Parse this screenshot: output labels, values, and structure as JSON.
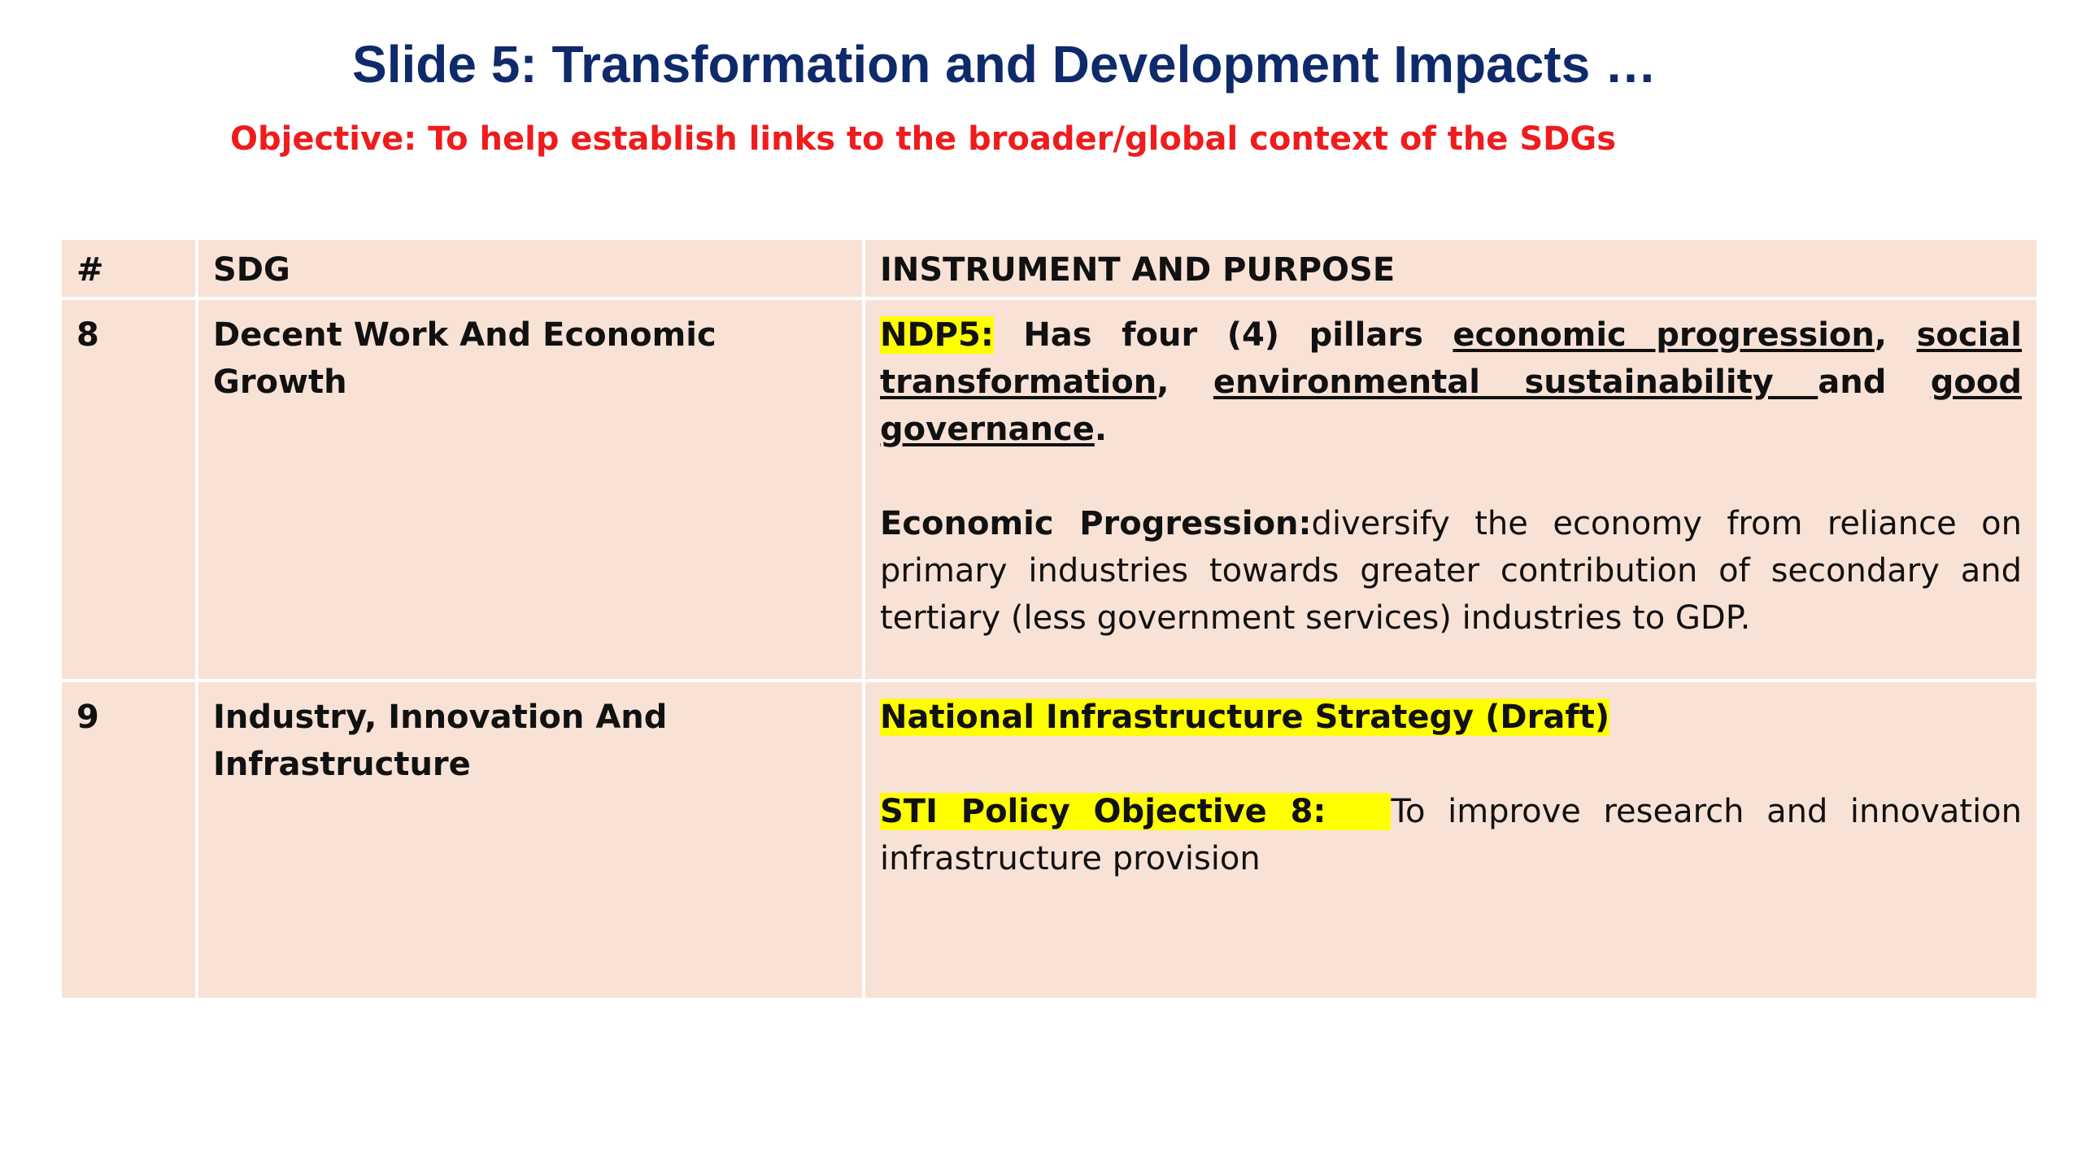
{
  "slide": {
    "title": "Slide 5: Transformation and Development Impacts …",
    "objective": "Objective: To help establish links to the broader/global context of the SDGs"
  },
  "table": {
    "headers": {
      "number": "#",
      "sdg": "SDG",
      "instrument": "INSTRUMENT AND PURPOSE"
    },
    "rows": [
      {
        "number": "8",
        "sdg": "Decent Work And Economic Growth",
        "ndp5_label": "NDP5:",
        "ndp5_text": " Has four (4) pillars ",
        "pillar_1": "economic progression",
        "sep_1": ", ",
        "pillar_2": "social transformation",
        "sep_2": ", ",
        "pillar_3": "environmental sustainability ",
        "sep_3": "and ",
        "pillar_4": "good governance",
        "end": ".",
        "econ_label": "Economic Progression:",
        "econ_text": "diversify the economy from reliance on primary industries towards greater contribution of secondary and tertiary (less government services) industries to GDP."
      },
      {
        "number": "9",
        "sdg": "Industry, Innovation And Infrastructure",
        "strategy_label": "National Infrastructure Strategy (Draft)",
        "sti_label": "STI Policy Objective 8:",
        "sti_text": "To improve research and innovation infrastructure provision"
      }
    ]
  },
  "colors": {
    "title": "#0f2a6b",
    "objective": "#ee1c1c",
    "cell_background": "#f8e2d6",
    "highlight": "#ffff00"
  }
}
